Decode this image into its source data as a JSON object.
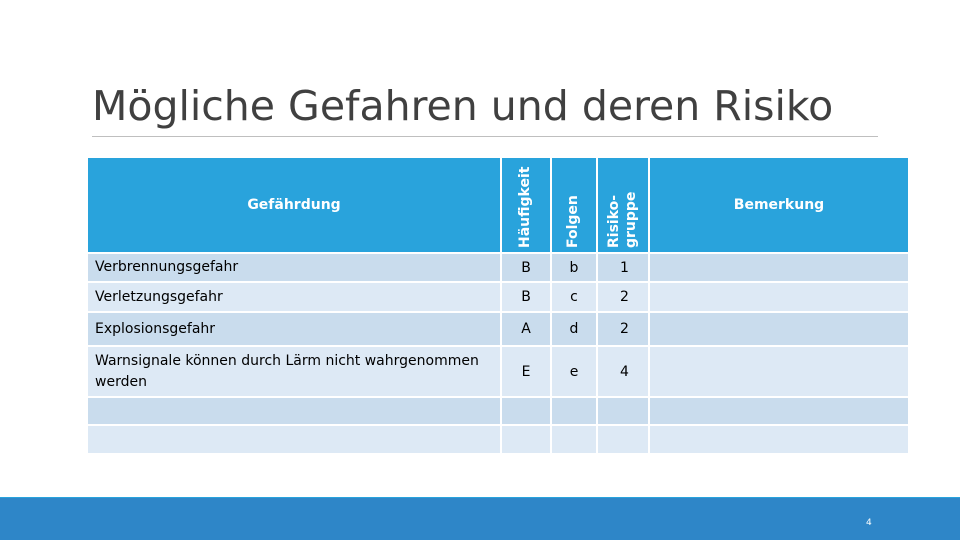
{
  "slide": {
    "title": "Mögliche Gefahren und deren Risiko",
    "page_number": "4"
  },
  "table": {
    "headers": {
      "hazard": "Gefährdung",
      "frequency": "Häufigkeit",
      "consequences": "Folgen",
      "risk_group_line1": "Risiko-",
      "risk_group_line2": "gruppe",
      "remark": "Bemerkung"
    },
    "rows": [
      {
        "hazard": "Verbrennungsgefahr",
        "frequency": "B",
        "consequences": "b",
        "risk_group": "1",
        "remark": ""
      },
      {
        "hazard": "Verletzungsgefahr",
        "frequency": "B",
        "consequences": "c",
        "risk_group": "2",
        "remark": ""
      },
      {
        "hazard": "Explosionsgefahr",
        "frequency": "A",
        "consequences": "d",
        "risk_group": "2",
        "remark": ""
      },
      {
        "hazard": "Warnsignale können durch Lärm nicht wahrgenommen werden",
        "frequency": "E",
        "consequences": "e",
        "risk_group": "4",
        "remark": ""
      },
      {
        "hazard": "",
        "frequency": "",
        "consequences": "",
        "risk_group": "",
        "remark": ""
      },
      {
        "hazard": "",
        "frequency": "",
        "consequences": "",
        "risk_group": "",
        "remark": ""
      }
    ]
  },
  "colors": {
    "header_bg": "#29a3dc",
    "row_light": "#dde9f5",
    "row_dark": "#c9dced",
    "footer_bg": "#2e86c8"
  }
}
